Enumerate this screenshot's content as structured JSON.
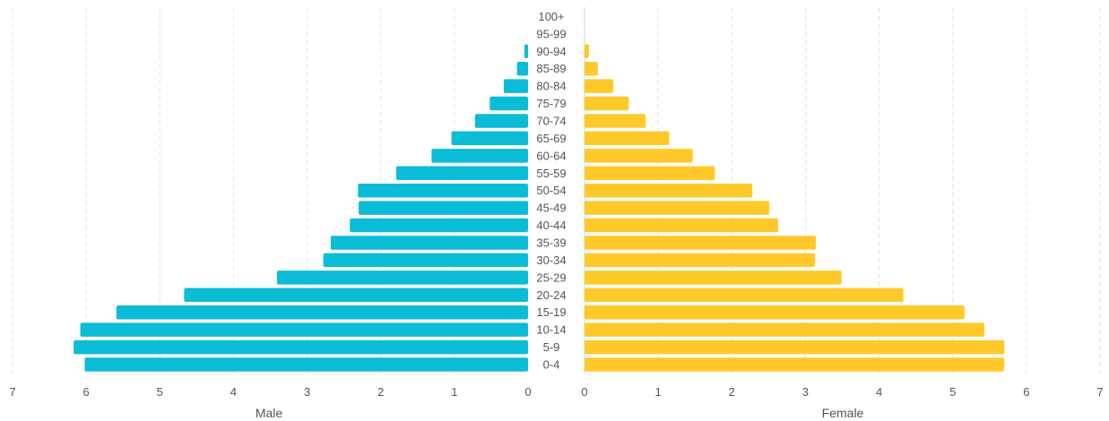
{
  "chart_data": {
    "type": "bar",
    "orientation": "horizontal",
    "layout": "population-pyramid",
    "categories": [
      "0-4",
      "5-9",
      "10-14",
      "15-19",
      "20-24",
      "25-29",
      "30-34",
      "35-39",
      "40-44",
      "45-49",
      "50-54",
      "55-59",
      "60-64",
      "65-69",
      "70-74",
      "75-79",
      "80-84",
      "85-89",
      "90-94",
      "95-99",
      "100+"
    ],
    "series": [
      {
        "name": "Male",
        "color": "#0bbcd6",
        "values": [
          6.02,
          6.17,
          6.08,
          5.59,
          4.67,
          3.41,
          2.78,
          2.68,
          2.42,
          2.3,
          2.31,
          1.79,
          1.31,
          1.04,
          0.72,
          0.52,
          0.33,
          0.15,
          0.05,
          0.0,
          0.0
        ]
      },
      {
        "name": "Female",
        "color": "#ffc929",
        "values": [
          5.7,
          5.7,
          5.43,
          5.16,
          4.33,
          3.49,
          3.13,
          3.14,
          2.63,
          2.51,
          2.28,
          1.77,
          1.47,
          1.15,
          0.83,
          0.6,
          0.39,
          0.18,
          0.06,
          0.0,
          0.0
        ]
      }
    ],
    "x_ticks": [
      "0",
      "1",
      "2",
      "3",
      "4",
      "5",
      "6",
      "7"
    ],
    "xlim": [
      0,
      7
    ],
    "xlabel_left": "Male",
    "xlabel_right": "Female",
    "grid": true
  }
}
